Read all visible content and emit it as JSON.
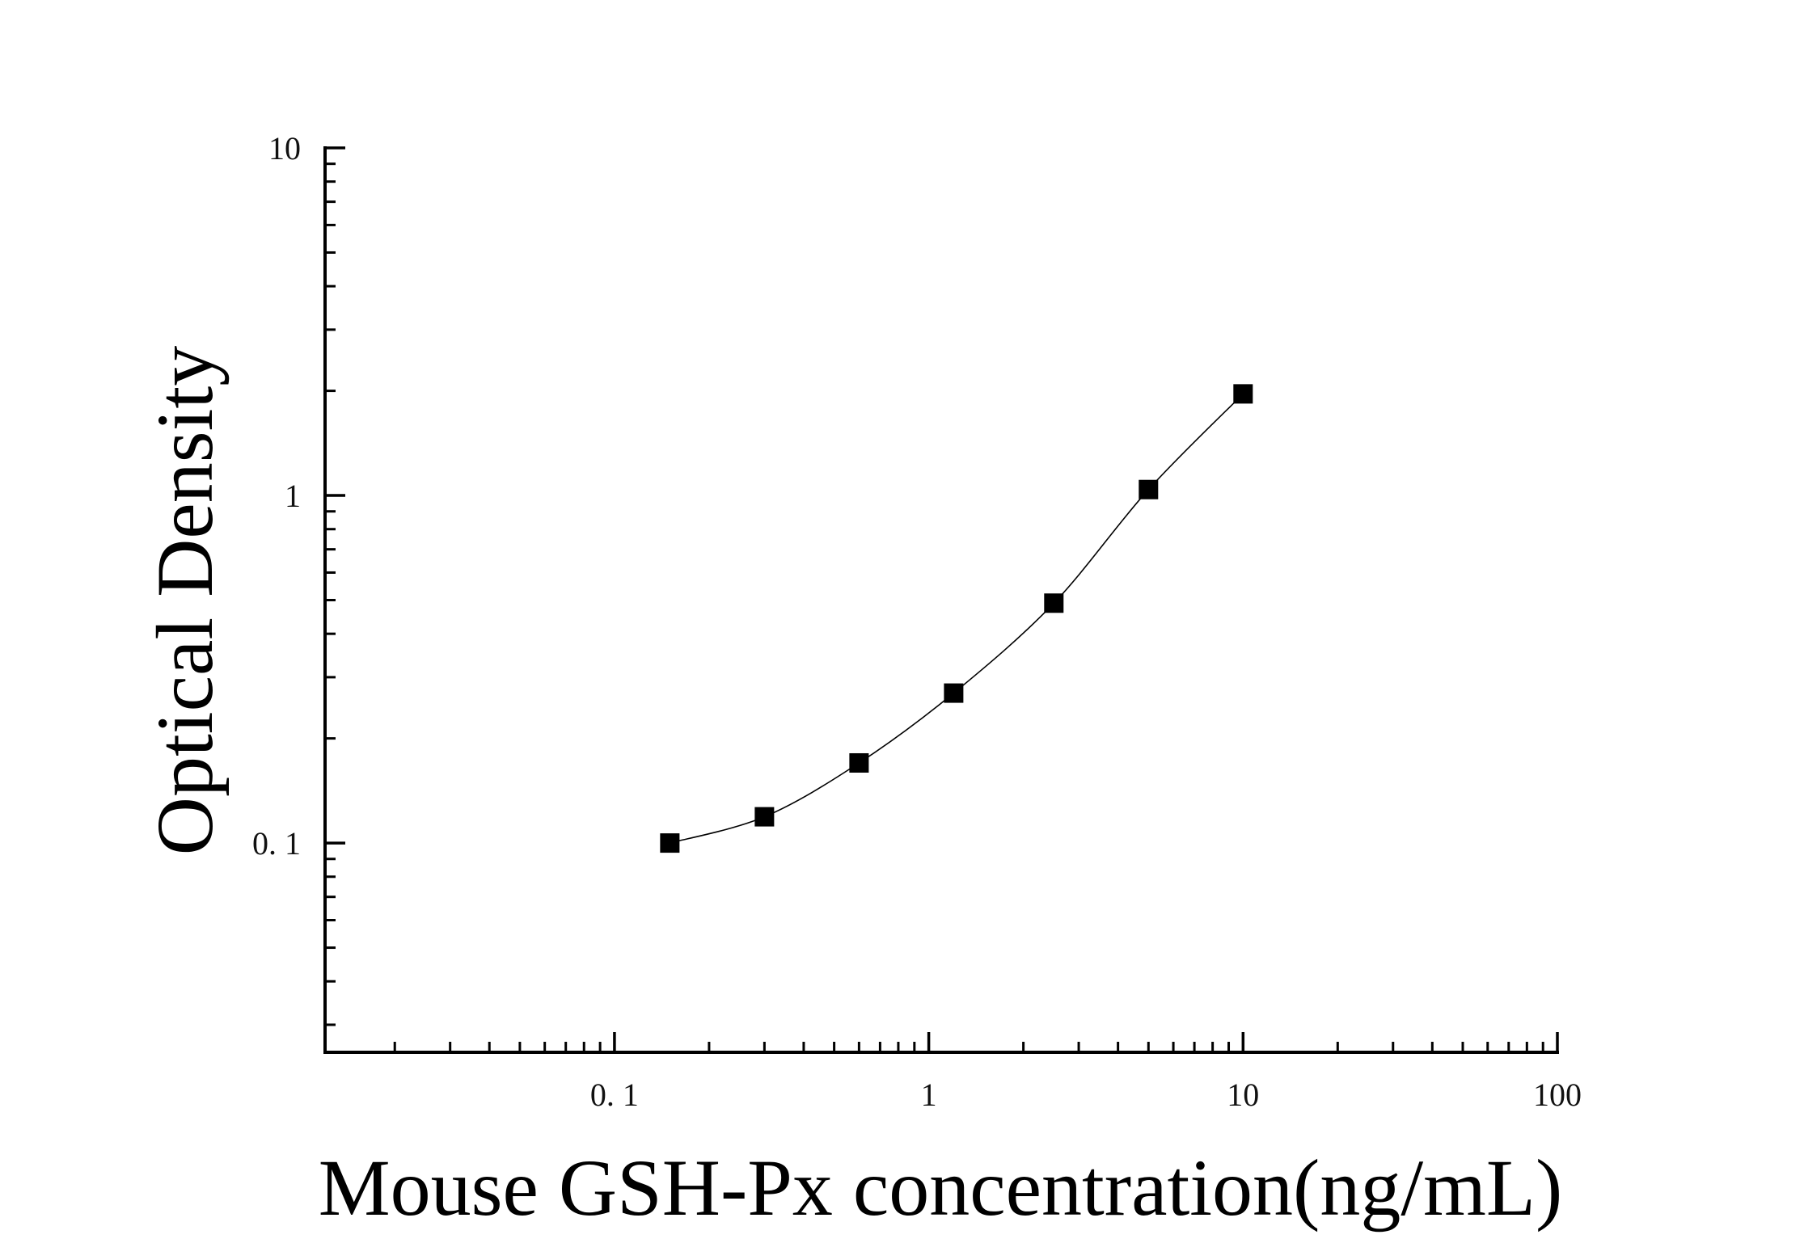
{
  "chart_data": {
    "type": "scatter",
    "xlabel": "Mouse GSH-Px concentration(ng/mL)",
    "ylabel": "Optical Density",
    "x_scale": "log",
    "y_scale": "log",
    "xlim": [
      0.012,
      100
    ],
    "ylim": [
      0.025,
      10
    ],
    "x_ticks": [
      {
        "value": 0.1,
        "label": "0. 1"
      },
      {
        "value": 1,
        "label": "1"
      },
      {
        "value": 10,
        "label": "10"
      },
      {
        "value": 100,
        "label": "100"
      }
    ],
    "y_ticks": [
      {
        "value": 0.1,
        "label": "0. 1"
      },
      {
        "value": 1,
        "label": "1"
      },
      {
        "value": 10,
        "label": "10"
      }
    ],
    "grid": false,
    "marker": "square",
    "color": "#000000",
    "fit_curve": true,
    "series": [
      {
        "x": [
          0.15,
          0.3,
          0.6,
          1.2,
          2.5,
          5,
          10
        ],
        "y": [
          0.1,
          0.119,
          0.17,
          0.27,
          0.49,
          1.04,
          1.96
        ]
      }
    ]
  }
}
